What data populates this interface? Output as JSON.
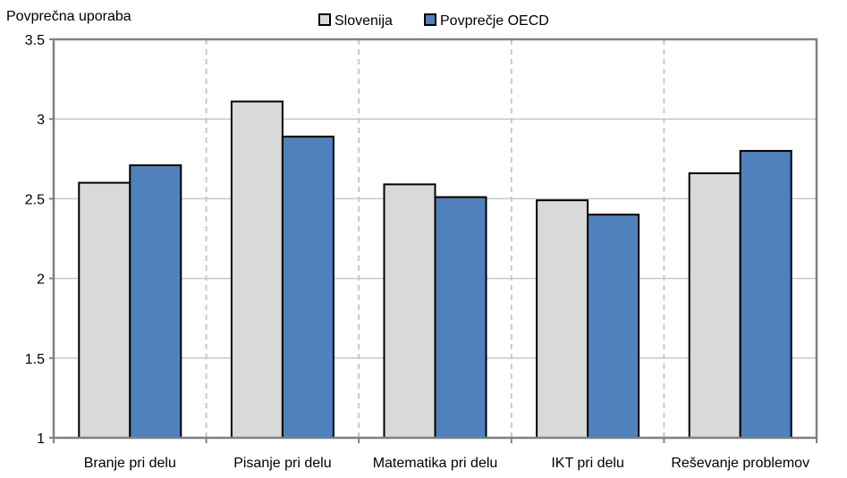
{
  "chart_data": {
    "type": "bar",
    "ylabel": "Povprečna uporaba",
    "categories": [
      "Branje pri delu",
      "Pisanje pri delu",
      "Matematika pri delu",
      "IKT pri delu",
      "Reševanje problemov"
    ],
    "series": [
      {
        "name": "Slovenija",
        "values": [
          2.6,
          3.11,
          2.59,
          2.49,
          2.66
        ]
      },
      {
        "name": "Povprečje OECD",
        "values": [
          2.71,
          2.89,
          2.51,
          2.4,
          2.8
        ]
      }
    ],
    "ylim": [
      1,
      3.5
    ],
    "yticks": [
      "1",
      "1.5",
      "2",
      "2.5",
      "3",
      "3.5"
    ],
    "yticks_values": [
      1,
      1.5,
      2,
      2.5,
      3,
      3.5
    ],
    "grid": true,
    "legend_position": "top-center",
    "colors": {
      "series": [
        "#d9d9d9",
        "#4f81bd"
      ],
      "grid": "#c8c8c8",
      "axis": "#808080",
      "bar_border": "#000000"
    }
  }
}
